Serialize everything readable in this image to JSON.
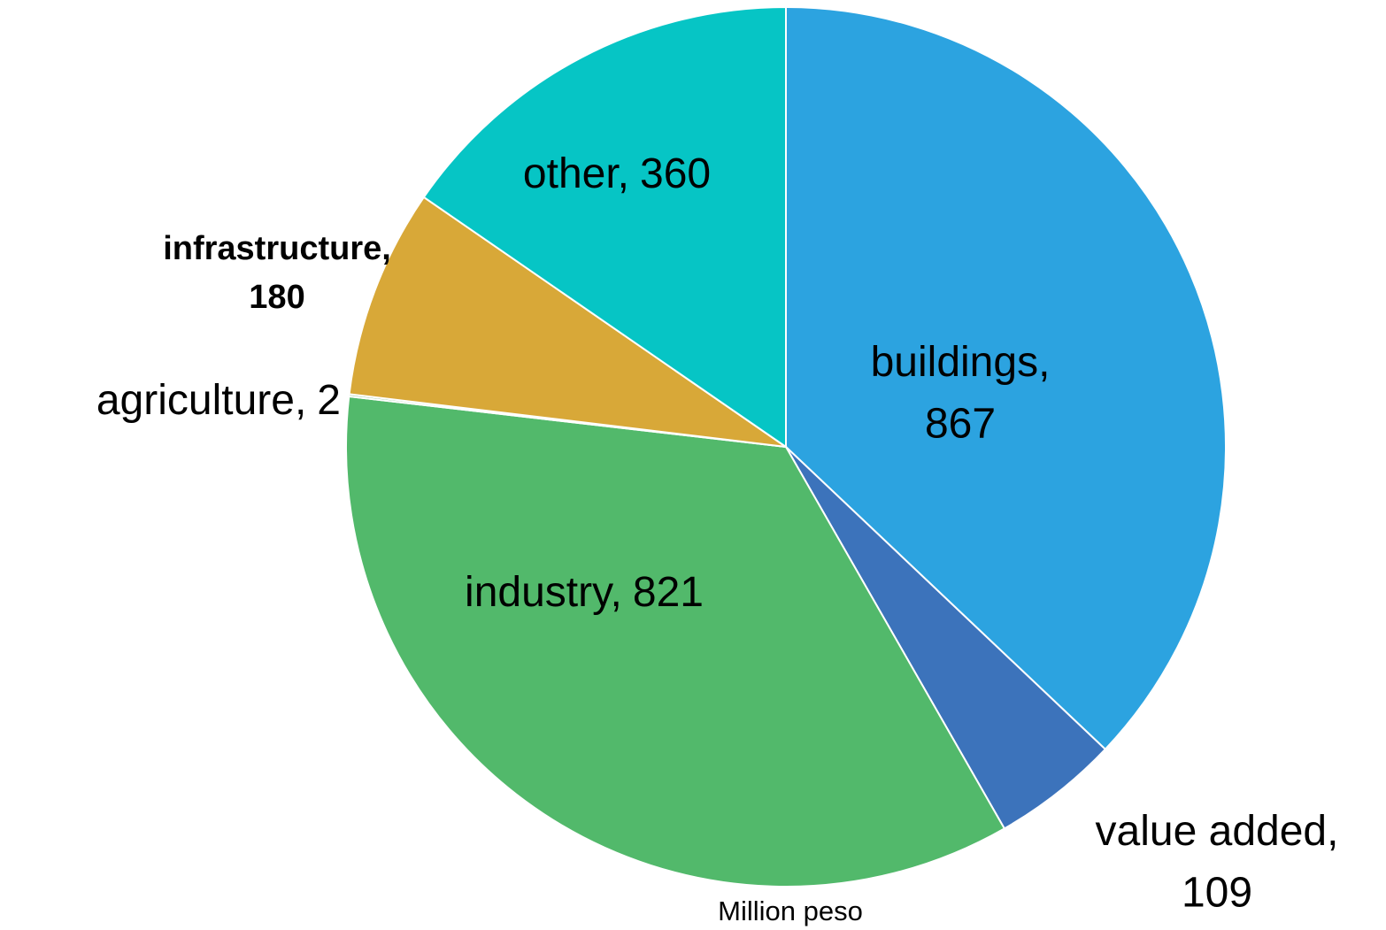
{
  "chart_data": {
    "type": "pie",
    "categories": [
      "buildings,",
      "value added,",
      "industry,",
      "agriculture,",
      "infrastructure,",
      "other,"
    ],
    "values": [
      867,
      109,
      821,
      2,
      180,
      360
    ],
    "colors": [
      "#2ca3e0",
      "#3c73bb",
      "#52b96b",
      "#9cc89e",
      "#d8a838",
      "#06c5c5"
    ],
    "note": "Million peso"
  }
}
